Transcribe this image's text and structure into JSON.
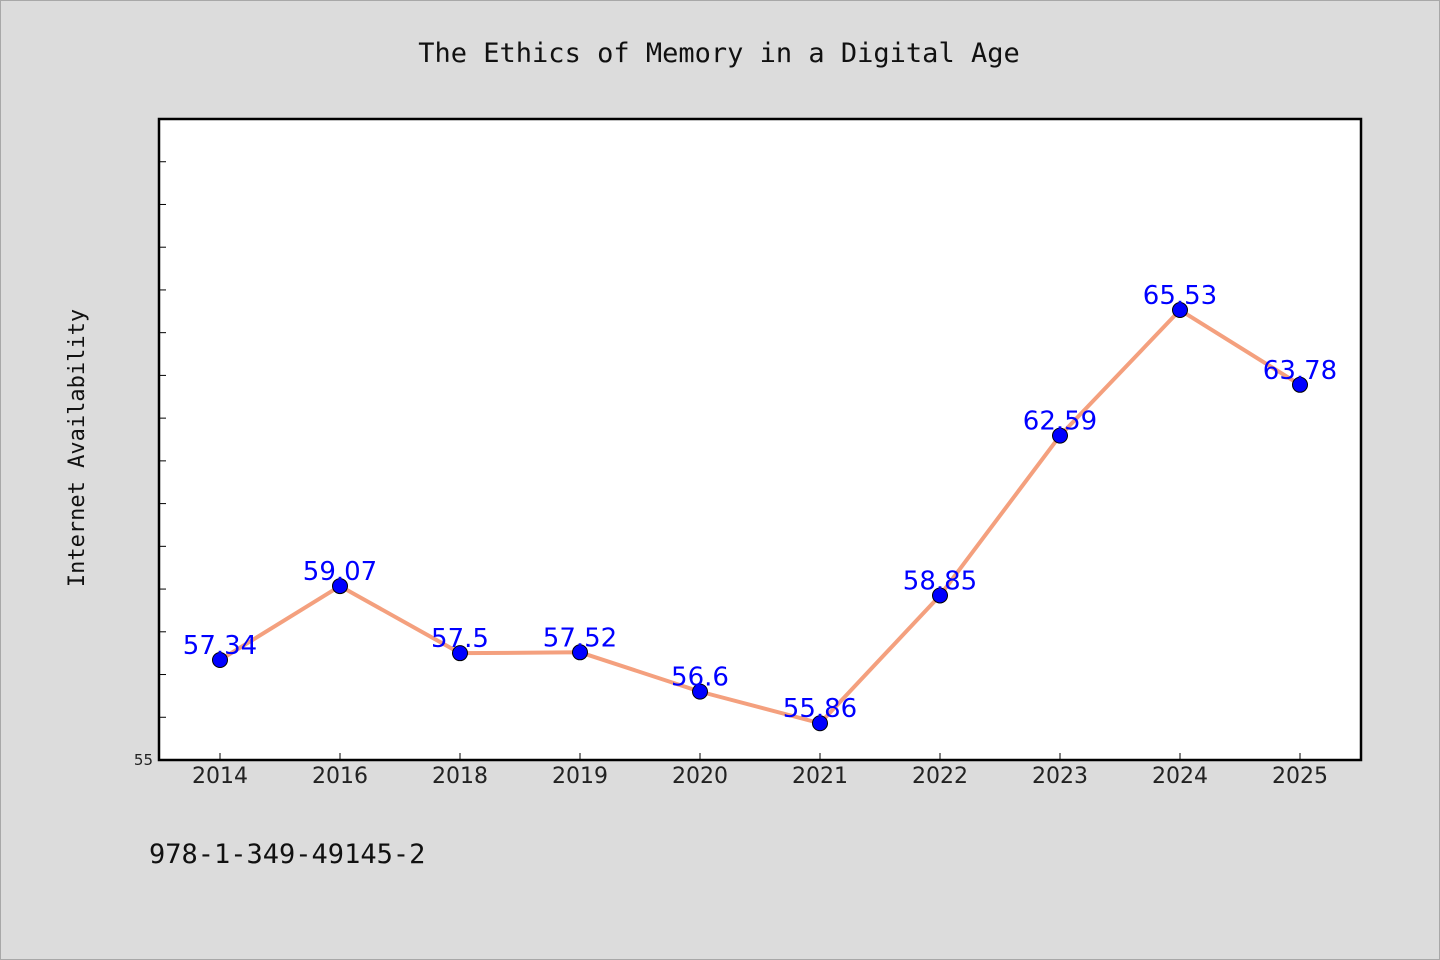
{
  "chart_data": {
    "type": "line",
    "title": "The Ethics of Memory in a Digital Age",
    "xlabel": "",
    "ylabel": "Internet Availability",
    "categories": [
      "2014",
      "2016",
      "2018",
      "2019",
      "2020",
      "2021",
      "2022",
      "2023",
      "2024",
      "2025"
    ],
    "values": [
      57.34,
      59.07,
      57.5,
      57.52,
      56.6,
      55.86,
      58.85,
      62.59,
      65.53,
      63.78
    ],
    "data_labels": [
      "57.34",
      "59.07",
      "57.5",
      "57.52",
      "56.6",
      "55.86",
      "58.85",
      "62.59",
      "65.53",
      "63.78"
    ],
    "ylim": [
      55,
      70
    ],
    "yticks_labeled": [
      "55"
    ],
    "grid": false,
    "legend": "none",
    "line_color": "#f4a07e",
    "marker_color": "#0000ff",
    "label_color": "#0000ff"
  },
  "footer": {
    "isbn": "978-1-349-49145-2"
  }
}
